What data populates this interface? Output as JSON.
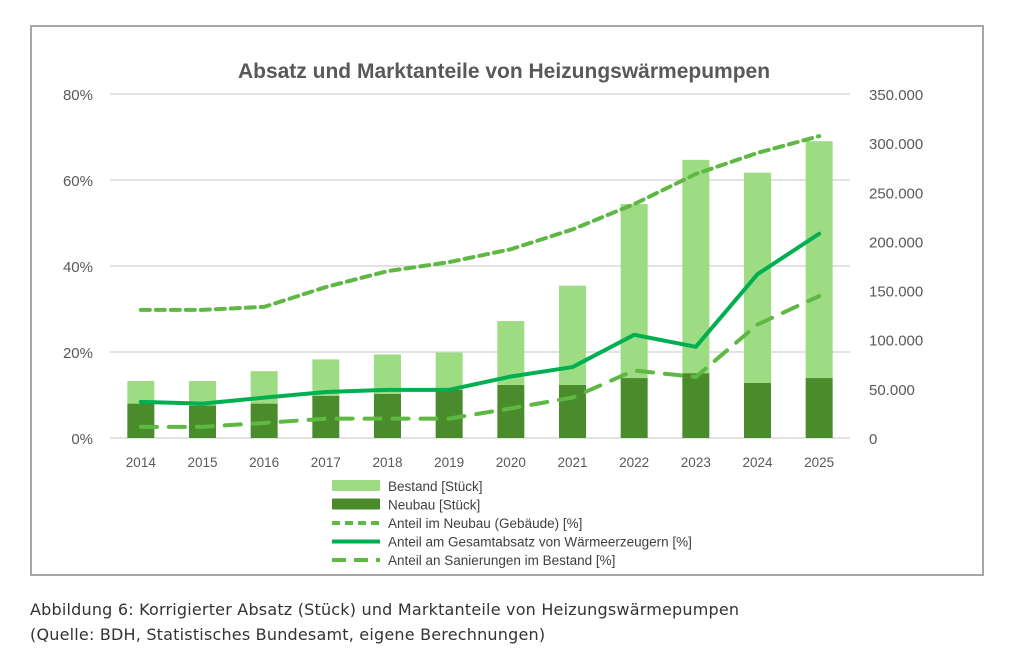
{
  "chart_data": {
    "type": "bar",
    "title": "Absatz und Marktanteile von Heizungswärmepumpen",
    "categories": [
      "2014",
      "2015",
      "2016",
      "2017",
      "2018",
      "2019",
      "2020",
      "2021",
      "2022",
      "2023",
      "2024",
      "2025"
    ],
    "left_axis": {
      "range": [
        0,
        80
      ],
      "ticks": [
        "0%",
        "20%",
        "40%",
        "60%",
        "80%"
      ],
      "tick_values": [
        0,
        20,
        40,
        60,
        80
      ],
      "unit": "%"
    },
    "right_axis": {
      "range": [
        0,
        350000
      ],
      "ticks": [
        "0",
        "50.000",
        "100.000",
        "150.000",
        "200.000",
        "250.000",
        "300.000",
        "350.000"
      ],
      "tick_values": [
        0,
        50000,
        100000,
        150000,
        200000,
        250000,
        300000,
        350000
      ]
    },
    "grid": true,
    "legend_position": "bottom",
    "bar_series": [
      {
        "name": "Bestand [Stück]",
        "color": "#9edc84",
        "axis": "right",
        "stacked": true,
        "values": [
          23000,
          25000,
          33000,
          37000,
          40000,
          38000,
          65000,
          101000,
          177000,
          217000,
          214000,
          241000
        ]
      },
      {
        "name": "Neubau [Stück]",
        "color": "#4a8c2c",
        "axis": "right",
        "stacked": true,
        "values": [
          35000,
          33000,
          35000,
          43000,
          45000,
          49000,
          54000,
          54000,
          61000,
          66000,
          56000,
          61000
        ]
      }
    ],
    "line_series": [
      {
        "name": "Anteil im Neubau (Gebäude) [%]",
        "color": "#5fb843",
        "style": "dotted-dash",
        "axis": "left",
        "values": [
          29.8,
          29.8,
          30.5,
          35.1,
          38.8,
          40.9,
          43.9,
          48.5,
          54.4,
          61.4,
          66.3,
          70.2
        ]
      },
      {
        "name": "Anteil am Gesamtabsatz von Wärmeerzeugern [%]",
        "color": "#00b050",
        "style": "solid",
        "axis": "left",
        "values": [
          8.4,
          8.0,
          9.4,
          10.7,
          11.2,
          11.2,
          14.3,
          16.5,
          24.0,
          21.2,
          38.1,
          47.5
        ]
      },
      {
        "name": "Anteil an Sanierungen im Bestand [%]",
        "color": "#5fb843",
        "style": "long-dash",
        "axis": "left",
        "values": [
          2.6,
          2.6,
          3.5,
          4.5,
          4.5,
          4.5,
          6.9,
          9.4,
          15.7,
          14.2,
          26.4,
          33.0
        ]
      }
    ]
  },
  "caption": {
    "line1": "Abbildung 6: Korrigierter Absatz (Stück) und Marktanteile von Heizungswärmepumpen",
    "line2": "(Quelle: BDH, Statistisches Bundesamt, eigene Berechnungen)"
  }
}
